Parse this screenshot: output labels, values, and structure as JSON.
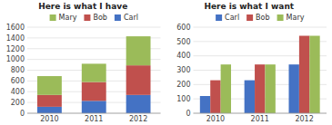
{
  "chart_data": [
    {
      "type": "bar",
      "title": "Here is what I have",
      "stacked": true,
      "categories": [
        "2010",
        "2011",
        "2012"
      ],
      "series": [
        {
          "name": "Carl",
          "color": "#4472C4",
          "values": [
            120,
            230,
            340
          ]
        },
        {
          "name": "Bob",
          "color": "#C0504D",
          "values": [
            220,
            350,
            550
          ]
        },
        {
          "name": "Mary",
          "color": "#9BBB59",
          "values": [
            350,
            340,
            540
          ]
        }
      ],
      "ylim": [
        0,
        1600
      ],
      "yticks": [
        0,
        200,
        400,
        600,
        800,
        1000,
        1200,
        1400,
        1600
      ],
      "grid": true,
      "legend": "top"
    },
    {
      "type": "bar",
      "title": "Here is what I want",
      "stacked": false,
      "categories": [
        "2010",
        "2011",
        "2012"
      ],
      "series": [
        {
          "name": "Carl",
          "color": "#4472C4",
          "values": [
            120,
            230,
            340
          ]
        },
        {
          "name": "Bob",
          "color": "#C0504D",
          "values": [
            230,
            340,
            540
          ]
        },
        {
          "name": "Mary",
          "color": "#9BBB59",
          "values": [
            340,
            340,
            540
          ]
        }
      ],
      "ylim": [
        0,
        600
      ],
      "yticks": [
        0,
        100,
        200,
        300,
        400,
        500,
        600
      ],
      "grid": true,
      "legend": "top"
    }
  ]
}
